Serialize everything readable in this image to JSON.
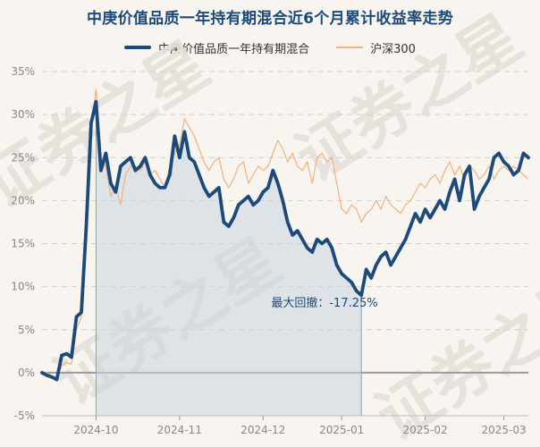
{
  "title": "中庚价值品质一年持有期混合近6个月累计收益率走势",
  "legend": {
    "main": "中庚价值品质一年持有期混合",
    "bench": "沪深300"
  },
  "annotation": "最大回撤：-17.25%",
  "watermark": "证券之星",
  "colors": {
    "main": "#1c4a7a",
    "bench": "#f2b27a",
    "drawdown_fill": "#c9d6e2",
    "background": "#f8f4ef"
  },
  "chart_data": {
    "type": "line",
    "ylim": [
      -5,
      35
    ],
    "y_ticks": [
      "-5%",
      "0%",
      "5%",
      "10%",
      "15%",
      "20%",
      "25%",
      "30%",
      "35%"
    ],
    "y_tick_values": [
      -5,
      0,
      5,
      10,
      15,
      20,
      25,
      30,
      35
    ],
    "x_ticks": [
      "2024-10",
      "2024-11",
      "2024-12",
      "2025-01",
      "2025-02",
      "2025-03"
    ],
    "x_tick_positions": [
      11,
      28,
      45,
      61,
      78,
      94
    ],
    "xlim": [
      0,
      99
    ],
    "grid": true,
    "legend_position": "top-center",
    "drawdown": {
      "start": 11,
      "end": 65,
      "value": -17.25
    },
    "series": [
      {
        "name": "中庚价值品质一年持有期混合",
        "x": [
          0,
          1,
          2,
          3,
          4,
          5,
          6,
          7,
          8,
          9,
          10,
          11,
          12,
          13,
          14,
          15,
          16,
          17,
          18,
          19,
          20,
          21,
          22,
          23,
          24,
          25,
          26,
          27,
          28,
          29,
          30,
          31,
          32,
          33,
          34,
          35,
          36,
          37,
          38,
          39,
          40,
          41,
          42,
          43,
          44,
          45,
          46,
          47,
          48,
          49,
          50,
          51,
          52,
          53,
          54,
          55,
          56,
          57,
          58,
          59,
          60,
          61,
          62,
          63,
          64,
          65,
          66,
          67,
          68,
          69,
          70,
          71,
          72,
          73,
          74,
          75,
          76,
          77,
          78,
          79,
          80,
          81,
          82,
          83,
          84,
          85,
          86,
          87,
          88,
          89,
          90,
          91,
          92,
          93,
          94,
          95,
          96,
          97,
          98,
          99
        ],
        "values": [
          0.0,
          -0.3,
          -0.5,
          -0.8,
          2.0,
          2.2,
          1.8,
          6.5,
          7.0,
          17.0,
          29.0,
          31.5,
          23.5,
          25.5,
          22.0,
          21.0,
          24.0,
          24.5,
          25.0,
          23.5,
          24.0,
          25.0,
          23.0,
          22.0,
          21.5,
          21.5,
          23.0,
          27.5,
          25.0,
          28.0,
          25.0,
          24.5,
          23.0,
          21.5,
          20.5,
          21.0,
          21.5,
          17.5,
          17.0,
          18.0,
          19.5,
          20.0,
          20.5,
          19.5,
          20.0,
          21.0,
          21.5,
          23.5,
          22.0,
          20.0,
          17.5,
          16.0,
          16.5,
          15.5,
          14.5,
          14.0,
          15.5,
          15.0,
          15.5,
          14.5,
          12.5,
          11.5,
          11.0,
          10.5,
          9.5,
          9.0,
          12.0,
          11.0,
          12.5,
          13.5,
          14.0,
          12.5,
          13.5,
          14.5,
          15.5,
          17.0,
          18.5,
          17.5,
          19.0,
          18.0,
          19.0,
          20.0,
          19.0,
          21.0,
          22.5,
          20.0,
          23.0,
          24.0,
          19.0,
          20.5,
          21.5,
          22.5,
          25.0,
          25.5,
          24.5,
          24.0,
          23.0,
          23.5,
          25.5,
          25.0
        ]
      },
      {
        "name": "沪深300",
        "x": [
          0,
          1,
          2,
          3,
          4,
          5,
          6,
          7,
          8,
          9,
          10,
          11,
          12,
          13,
          14,
          15,
          16,
          17,
          18,
          19,
          20,
          21,
          22,
          23,
          24,
          25,
          26,
          27,
          28,
          29,
          30,
          31,
          32,
          33,
          34,
          35,
          36,
          37,
          38,
          39,
          40,
          41,
          42,
          43,
          44,
          45,
          46,
          47,
          48,
          49,
          50,
          51,
          52,
          53,
          54,
          55,
          56,
          57,
          58,
          59,
          60,
          61,
          62,
          63,
          64,
          65,
          66,
          67,
          68,
          69,
          70,
          71,
          72,
          73,
          74,
          75,
          76,
          77,
          78,
          79,
          80,
          81,
          82,
          83,
          84,
          85,
          86,
          87,
          88,
          89,
          90,
          91,
          92,
          93,
          94,
          95,
          96,
          97,
          98,
          99
        ],
        "values": [
          0.0,
          0.0,
          -0.4,
          -0.6,
          0.8,
          1.2,
          1.0,
          5.0,
          6.5,
          15.0,
          28.0,
          33.0,
          25.0,
          24.0,
          20.5,
          21.5,
          19.5,
          23.0,
          24.0,
          24.0,
          23.5,
          24.5,
          23.0,
          23.5,
          22.5,
          21.5,
          24.0,
          25.5,
          26.5,
          29.5,
          28.5,
          27.5,
          26.0,
          24.5,
          23.5,
          24.5,
          25.0,
          22.5,
          21.5,
          22.5,
          24.0,
          24.5,
          22.0,
          23.0,
          24.0,
          23.5,
          24.0,
          25.5,
          27.0,
          26.0,
          24.5,
          25.5,
          24.0,
          23.5,
          24.5,
          22.0,
          25.0,
          25.5,
          24.5,
          25.0,
          22.0,
          19.0,
          18.5,
          19.5,
          19.0,
          17.5,
          18.5,
          19.0,
          20.0,
          19.0,
          20.5,
          19.5,
          19.0,
          18.5,
          19.5,
          20.0,
          21.0,
          22.0,
          21.5,
          22.5,
          23.0,
          22.0,
          23.5,
          24.5,
          23.0,
          24.0,
          22.5,
          24.0,
          23.5,
          22.5,
          23.0,
          24.0,
          22.5,
          23.5,
          24.0,
          23.5,
          24.0,
          23.5,
          23.0,
          22.5
        ]
      }
    ]
  }
}
